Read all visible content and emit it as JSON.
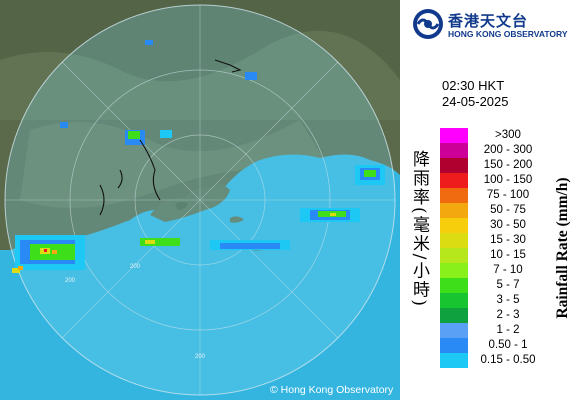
{
  "radar": {
    "time": "02:30 HKT",
    "date": "24-05-2025",
    "range_marks": [
      "200",
      "200",
      "200"
    ],
    "copyright": "© Hong Kong Observatory"
  },
  "org": {
    "name_zh": "香港天文台",
    "name_en": "HONG KONG OBSERVATORY",
    "logo_icon": "hko-logo-icon"
  },
  "legend": {
    "title_en": "Rainfall Rate (mm/h)",
    "title_zh": "降雨率(毫米/小時)",
    "scale": [
      {
        "label": ">300",
        "color": "#ff00ff"
      },
      {
        "label": "200 - 300",
        "color": "#cc0099"
      },
      {
        "label": "150 - 200",
        "color": "#b00030"
      },
      {
        "label": "100 - 150",
        "color": "#ee1c1c"
      },
      {
        "label": "75 - 100",
        "color": "#f06a10"
      },
      {
        "label": "50 - 75",
        "color": "#f2a80e"
      },
      {
        "label": "30 - 50",
        "color": "#f6ce0b"
      },
      {
        "label": "15 - 30",
        "color": "#dcdc12"
      },
      {
        "label": "10 - 15",
        "color": "#b6e61c"
      },
      {
        "label": "7 - 10",
        "color": "#8af01c"
      },
      {
        "label": "5 - 7",
        "color": "#3ede1a"
      },
      {
        "label": "3 - 5",
        "color": "#19c431"
      },
      {
        "label": "2 - 3",
        "color": "#0fa040"
      },
      {
        "label": "1 - 2",
        "color": "#5aa0f5"
      },
      {
        "label": "0.50 - 1",
        "color": "#2a8af5"
      },
      {
        "label": "0.15 - 0.50",
        "color": "#1ec8f5"
      }
    ]
  }
}
